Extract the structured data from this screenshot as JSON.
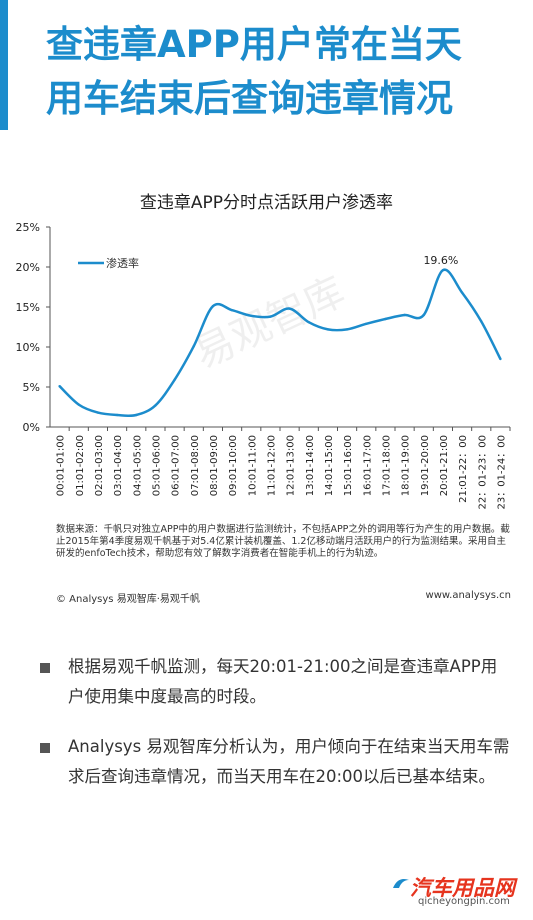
{
  "header": {
    "title_line1": "查违章APP用户常在当天",
    "title_line2": "用车结束后查询违章情况",
    "accent_color": "#1c8ccc"
  },
  "chart_data": {
    "type": "line",
    "title": "查违章APP分时点活跃用户渗透率",
    "series": [
      {
        "name": "渗透率",
        "values": [
          5.1,
          2.8,
          1.8,
          1.5,
          1.5,
          2.7,
          5.9,
          10.1,
          15.1,
          14.6,
          13.9,
          13.8,
          14.8,
          13.1,
          12.2,
          12.2,
          12.9,
          13.5,
          14.0,
          14.0,
          19.6,
          16.8,
          13.2,
          8.5
        ],
        "color": "#1c8ccc"
      }
    ],
    "categories": [
      "00:01-01:00",
      "01:01-02:00",
      "02:01-03:00",
      "03:01-04:00",
      "04:01-05:00",
      "05:01-06:00",
      "06:01-07:00",
      "07:01-08:00",
      "08:01-09:00",
      "09:01-10:00",
      "10:01-11:00",
      "11:01-12:00",
      "12:01-13:00",
      "13:01-14:00",
      "14:01-15:00",
      "15:01-16:00",
      "16:01-17:00",
      "17:01-18:00",
      "18:01-19:00",
      "19:01-20:00",
      "20:01-21:00",
      "21:01-22：00",
      "22：01-23：00",
      "23：01-24：00"
    ],
    "yticks": [
      "25%",
      "20%",
      "15%",
      "10%",
      "5%",
      "0%"
    ],
    "ylim": [
      0,
      25
    ],
    "annotation": {
      "index": 20,
      "text": "19.6%"
    },
    "legend_position": "top-left",
    "grid": false,
    "watermark": "易观智库"
  },
  "notes": {
    "source": "数据来源：千帆只对独立APP中的用户数据进行监测统计，不包括APP之外的调用等行为产生的用户数据。截止2015年第4季度易观千帆基于对5.4亿累计装机覆盖、1.2亿移动端月活跃用户的行为监测结果。采用自主研发的enfoTech技术，帮助您有效了解数字消费者在智能手机上的行为轨迹。",
    "copyright": "© Analysys 易观智库·易观千帆",
    "website": "www.analysys.cn"
  },
  "bullets": [
    "根据易观千帆监测，每天20:01-21:00之间是查违章APP用户使用集中度最高的时段。",
    "Analysys 易观智库分析认为，用户倾向于在结束当天用车需求后查询违章情况，而当天用车在20:00以后已基本结束。"
  ],
  "footer": {
    "logo_text": "汽车用品网",
    "logo_url": "qicheyongpin.com"
  }
}
